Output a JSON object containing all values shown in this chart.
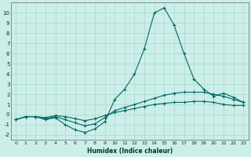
{
  "xlabel": "Humidex (Indice chaleur)",
  "bg_color": "#cceee8",
  "grid_color": "#aad8d0",
  "line_color": "#006868",
  "xlim": [
    -0.5,
    23.5
  ],
  "ylim": [
    -2.5,
    11.0
  ],
  "yticks": [
    -2,
    -1,
    0,
    1,
    2,
    3,
    4,
    5,
    6,
    7,
    8,
    9,
    10
  ],
  "xticks": [
    0,
    1,
    2,
    3,
    4,
    5,
    6,
    7,
    8,
    9,
    10,
    11,
    12,
    13,
    14,
    15,
    16,
    17,
    18,
    19,
    20,
    21,
    22,
    23
  ],
  "curve1_x": [
    0,
    1,
    2,
    3,
    4,
    5,
    6,
    7,
    8,
    9,
    10,
    11,
    12,
    13,
    14,
    15,
    16,
    17,
    18,
    19,
    20,
    21,
    22,
    23
  ],
  "curve1_y": [
    -0.5,
    -0.2,
    -0.2,
    -0.5,
    -0.3,
    -1.0,
    -1.5,
    -1.75,
    -1.4,
    -0.7,
    1.5,
    2.5,
    4.0,
    6.5,
    10.0,
    10.5,
    8.8,
    6.0,
    3.5,
    2.5,
    1.8,
    2.1,
    1.7,
    1.2
  ],
  "curve2_x": [
    0,
    1,
    2,
    3,
    4,
    5,
    6,
    7,
    8,
    9,
    10,
    11,
    12,
    13,
    14,
    15,
    16,
    17,
    18,
    19,
    20,
    21,
    22,
    23
  ],
  "curve2_y": [
    -0.5,
    -0.2,
    -0.2,
    -0.4,
    -0.2,
    -0.5,
    -0.8,
    -1.1,
    -0.9,
    -0.3,
    0.4,
    0.7,
    1.0,
    1.3,
    1.6,
    1.9,
    2.1,
    2.2,
    2.2,
    2.2,
    2.0,
    1.8,
    1.5,
    1.2
  ],
  "curve3_x": [
    0,
    1,
    2,
    3,
    4,
    5,
    6,
    7,
    8,
    9,
    10,
    11,
    12,
    13,
    14,
    15,
    16,
    17,
    18,
    19,
    20,
    21,
    22,
    23
  ],
  "curve3_y": [
    -0.5,
    -0.2,
    -0.2,
    -0.3,
    -0.1,
    -0.2,
    -0.4,
    -0.6,
    -0.4,
    -0.1,
    0.2,
    0.4,
    0.6,
    0.8,
    1.0,
    1.1,
    1.2,
    1.2,
    1.3,
    1.3,
    1.2,
    1.0,
    0.9,
    0.9
  ]
}
